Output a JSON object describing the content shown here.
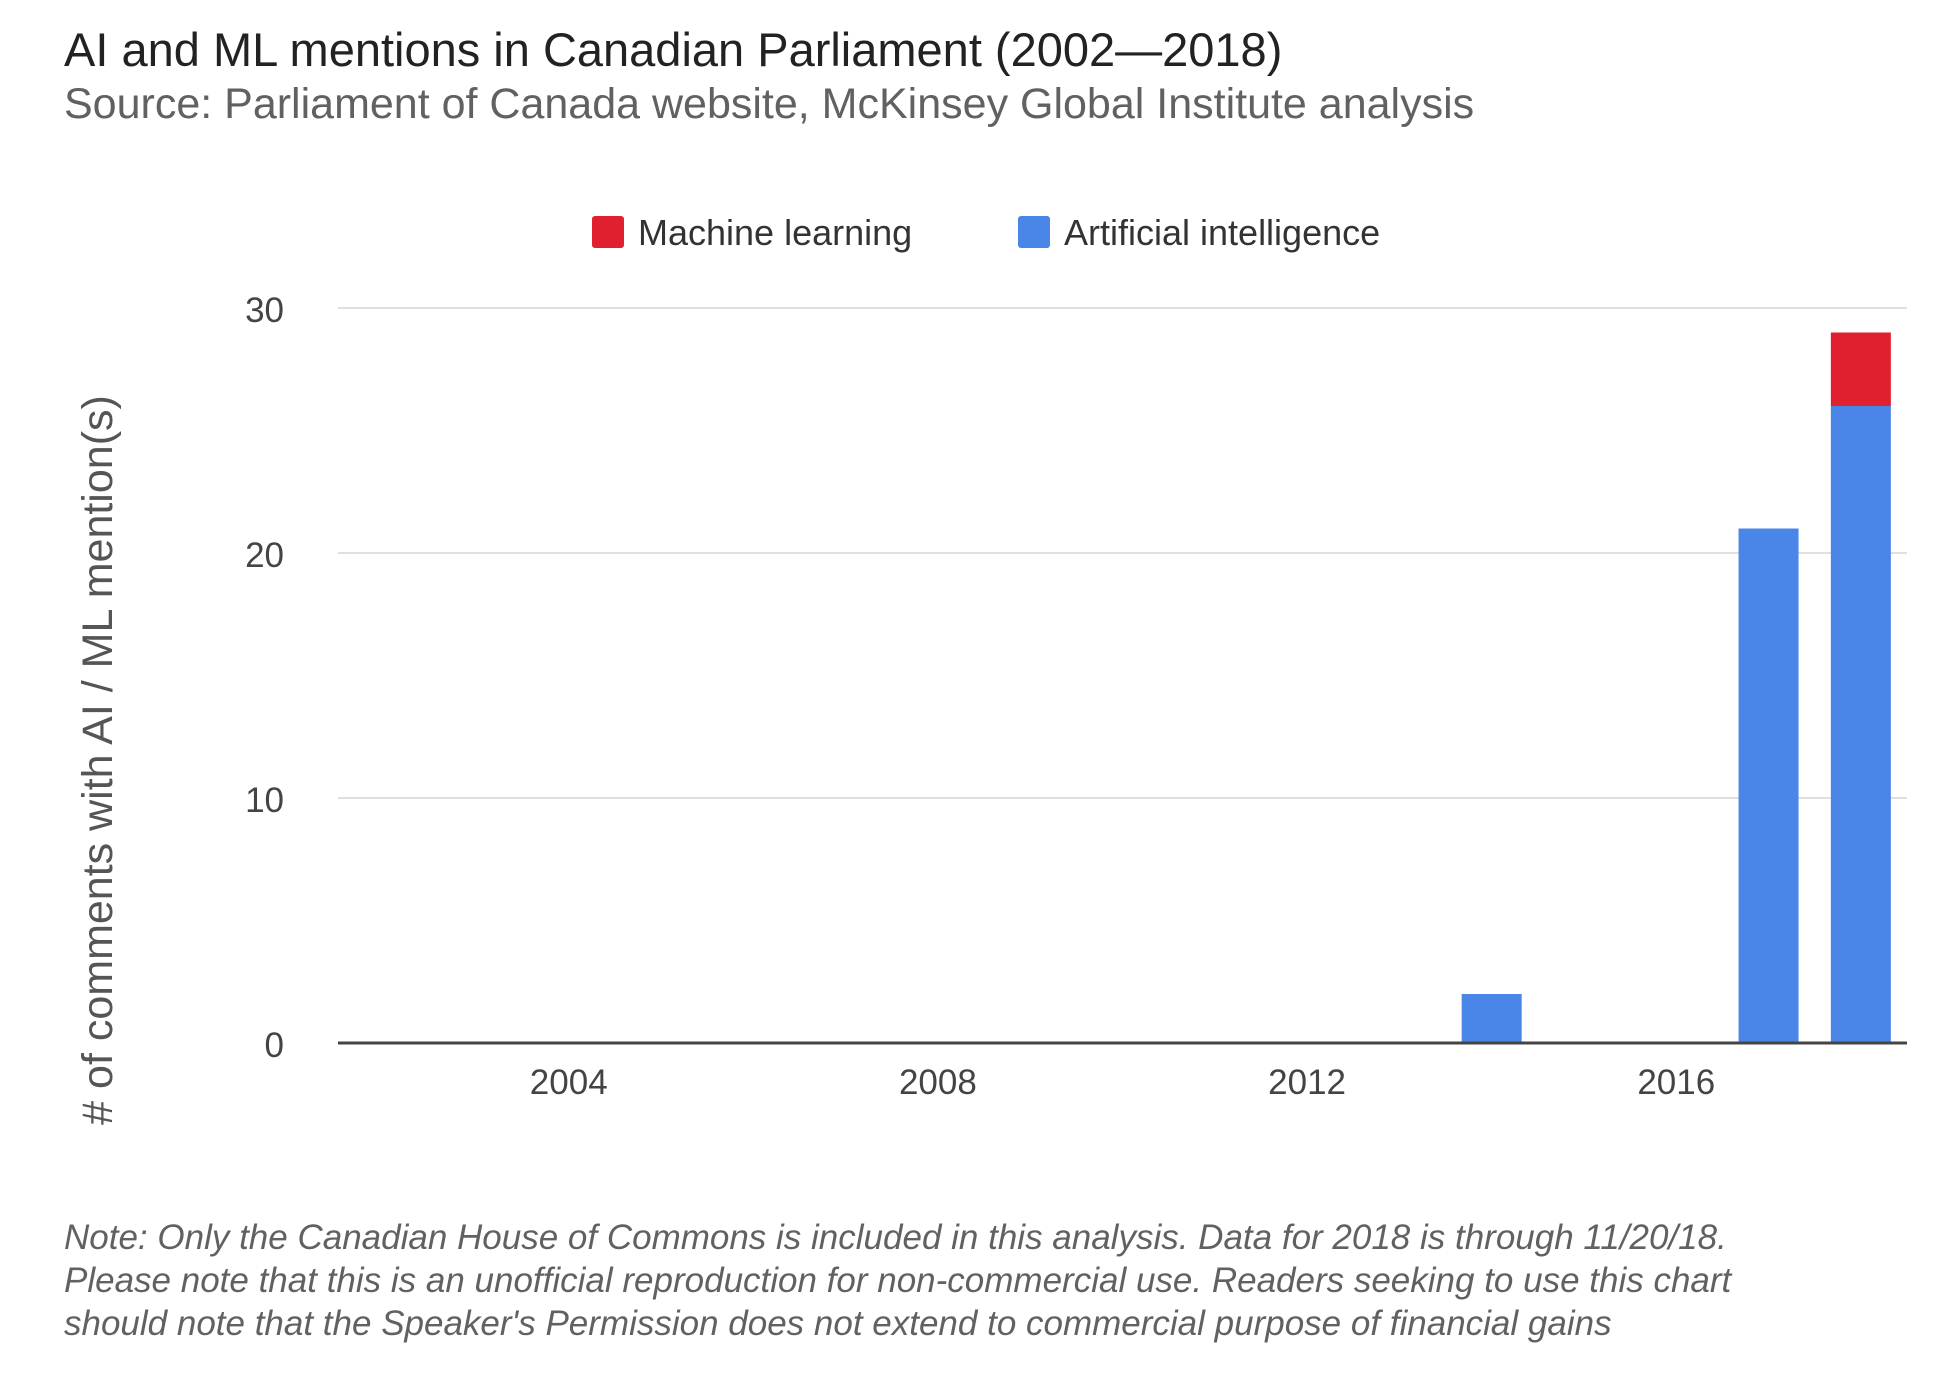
{
  "title": "AI and ML mentions in Canadian Parliament (2002—2018)",
  "subtitle": "Source: Parliament of Canada website, McKinsey Global Institute analysis",
  "note": [
    "Note: Only the Canadian House of Commons is included in this analysis. Data for 2018 is through 11/20/18.",
    "Please note that this is an unofficial reproduction for non-commercial use. Readers seeking to use this chart",
    "should note that the Speaker's Permission does not extend to commercial purpose of financial gains"
  ],
  "colors": {
    "machine_learning": "#e0202e",
    "artificial_intelligence": "#4a86e8",
    "grid": "#e0e0e0",
    "axis": "#444444",
    "tick_text": "#444444"
  },
  "chart_data": {
    "type": "bar",
    "stacked": true,
    "categories": [
      "2002",
      "2003",
      "2004",
      "2005",
      "2006",
      "2007",
      "2008",
      "2009",
      "2010",
      "2011",
      "2012",
      "2013",
      "2014",
      "2015",
      "2016",
      "2017",
      "2018"
    ],
    "series": [
      {
        "name": "Artificial intelligence",
        "color": "#4a86e8",
        "values": [
          0,
          0,
          0,
          0,
          0,
          0,
          0,
          0,
          0,
          0,
          0,
          0,
          2,
          0,
          0,
          21,
          26
        ]
      },
      {
        "name": "Machine learning",
        "color": "#e0202e",
        "values": [
          0,
          0,
          0,
          0,
          0,
          0,
          0,
          0,
          0,
          0,
          0,
          0,
          0,
          0,
          0,
          0,
          3
        ]
      }
    ],
    "legend_order": [
      "Machine learning",
      "Artificial intelligence"
    ],
    "legend_position": "top",
    "xticks": [
      "2004",
      "2008",
      "2012",
      "2016"
    ],
    "yticks": [
      0,
      10,
      20,
      30
    ],
    "ylim": [
      0,
      30
    ],
    "xlabel": "",
    "ylabel": "# of comments with AI / ML mention(s)",
    "grid": true
  }
}
